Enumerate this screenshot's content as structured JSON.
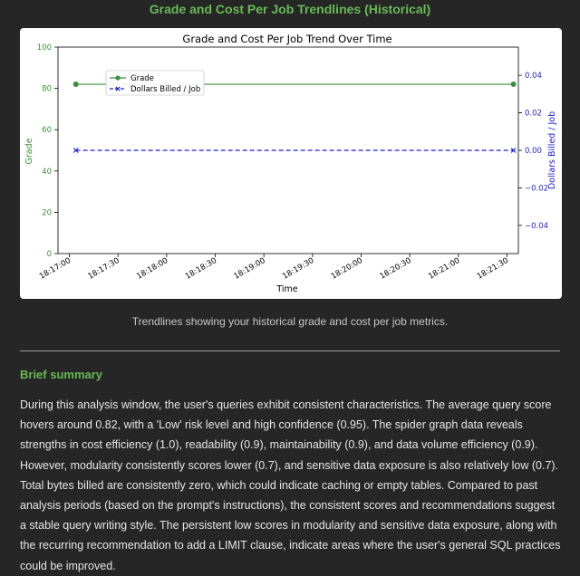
{
  "page": {
    "section_title": "Grade and Cost Per Job Trendlines (Historical)",
    "caption": "Trendlines showing your historical grade and cost per job metrics.",
    "summary_heading": "Brief summary",
    "summary_text": "During this analysis window, the user's queries exhibit consistent characteristics. The average query score hovers around 0.82, with a 'Low' risk level and high confidence (0.95). The spider graph data reveals strengths in cost efficiency (1.0), readability (0.9), maintainability (0.9), and data volume efficiency (0.9). However, modularity consistently scores lower (0.7), and sensitive data exposure is also relatively low (0.7). Total bytes billed are consistently zero, which could indicate caching or empty tables. Compared to past analysis periods (based on the prompt's instructions), the consistent scores and recommendations suggest a stable query writing style. The persistent low scores in modularity and sensitive data exposure, along with the recurring recommendation to add a LIMIT clause, indicate areas where the user's general SQL practices could be improved."
  },
  "chart_data": {
    "type": "line",
    "title": "Grade and Cost Per Job Trend Over Time",
    "xlabel": "Time",
    "ylabel": "Grade",
    "y2label": "Dollars Billed / Job",
    "x_ticks": [
      "18:17:00",
      "18:17:30",
      "18:18:00",
      "18:18:30",
      "18:19:00",
      "18:19:30",
      "18:20:00",
      "18:20:30",
      "18:21:00",
      "18:21:30"
    ],
    "x_range": [
      "18:16:53",
      "18:21:37"
    ],
    "ylim": [
      0,
      100
    ],
    "y_ticks": [
      0,
      20,
      40,
      60,
      80,
      100
    ],
    "y2lim": [
      -0.055,
      0.055
    ],
    "y2_ticks": [
      "0.04",
      "0.02",
      "0.00",
      "−0.02",
      "−0.04"
    ],
    "y2_tick_values": [
      0.04,
      0.02,
      0.0,
      -0.02,
      -0.04
    ],
    "legend": "upper-left",
    "grid": false,
    "series": [
      {
        "name": "Grade",
        "axis": "left",
        "color": "#3a8f3a",
        "style": "solid",
        "marker": "circle",
        "x": [
          "18:17:04",
          "18:21:34"
        ],
        "values": [
          82,
          82
        ]
      },
      {
        "name": "Dollars Billed / Job",
        "axis": "right",
        "color": "#1f1fcf",
        "style": "dashed",
        "marker": "x",
        "x": [
          "18:17:04",
          "18:21:34"
        ],
        "values": [
          0.0,
          0.0
        ]
      }
    ]
  }
}
